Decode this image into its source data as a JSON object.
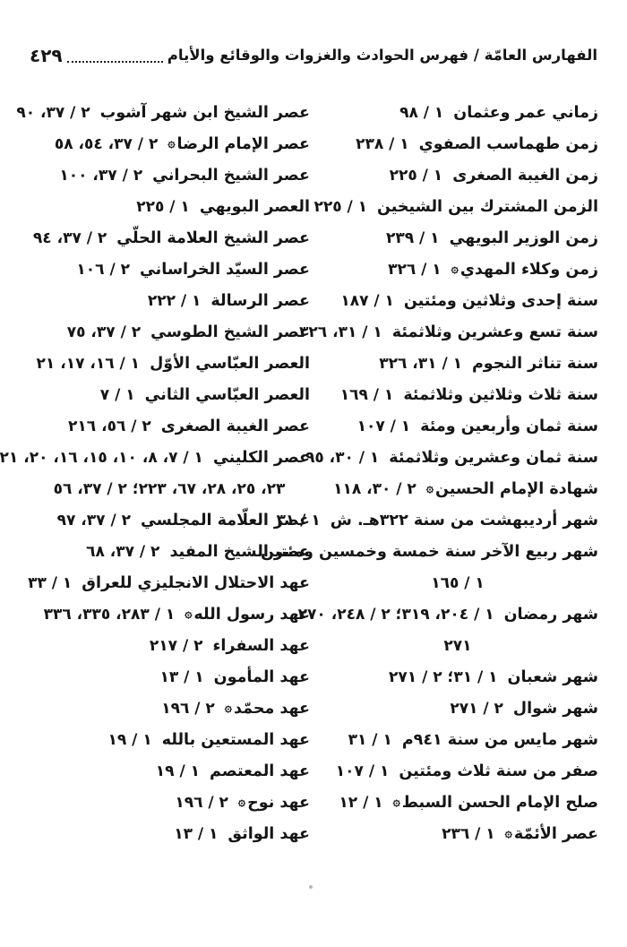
{
  "header": {
    "title": "الفهارس العامّة / فهرس الحوادث والغزوات والوقائع والأيام",
    "page_number": "٤٢٩"
  },
  "columns": {
    "right": [
      {
        "text": "زماني عمر وعثمان",
        "refs": "١ / ٩٨"
      },
      {
        "text": "زمن طهماسب الصفوي",
        "refs": "١ / ٢٣٨"
      },
      {
        "text": "زمن الغيبة الصغرى",
        "refs": "١ / ٢٢٥"
      },
      {
        "text": "الزمن المشترك بين الشيخين",
        "refs": "١ / ٢٢٥"
      },
      {
        "text": "زمن الوزير البويهي",
        "refs": "١ / ٢٣٩"
      },
      {
        "text": "زمن وكلاء المهدي",
        "seal": "۞",
        "refs": "١ / ٣٢٦"
      },
      {
        "text": "سنة إحدى وثلاثين ومئتين",
        "refs": "١ / ١٨٧"
      },
      {
        "text": "سنة تسع وعشرين وثلاثمئة",
        "refs": "١ / ٣١، ٣٢٦"
      },
      {
        "text": "سنة تناثر النجوم",
        "refs": "١ / ٣١، ٣٢٦"
      },
      {
        "text": "سنة ثلاث وثلاثين وثلاثمئة",
        "refs": "١ / ١٦٩"
      },
      {
        "text": "سنة ثمان وأربعين ومئة",
        "refs": "١ / ١٠٧"
      },
      {
        "text": "سنة ثمان وعشرين وثلاثمئة",
        "refs": "١ / ٣٠، ٩٥"
      },
      {
        "text": "شهادة الإمام الحسين",
        "seal": "۞",
        "refs": "٢ / ٣٠، ١١٨"
      },
      {
        "text": "شهر أرديبهشت من سنة ٣٢٢هـ. ش",
        "refs": "١ / ٣١"
      },
      {
        "text": "شهر ربيع الآخر سنة خمسة وخمسين ومئتين",
        "refs": ""
      },
      {
        "text": "",
        "refs": "١ / ١٦٥",
        "align": "center"
      },
      {
        "text": "شهر رمضان",
        "refs": "١ / ٢٠٤، ٣١٩؛ ٢ / ٢٤٨، ٢٧٠،"
      },
      {
        "text": "",
        "refs": "٢٧١",
        "align": "center"
      },
      {
        "text": "شهر شعبان",
        "refs": "١ / ٣١؛ ٢ / ٢٧١"
      },
      {
        "text": "شهر شوال",
        "refs": "٢ / ٢٧١"
      },
      {
        "text": "شهر مايس من سنة ٩٤١م",
        "refs": "١ / ٣١"
      },
      {
        "text": "صفر من سنة ثلاث ومئتين",
        "refs": "١ / ١٠٧"
      },
      {
        "text": "صلح الإمام الحسن السبط",
        "seal": "۞",
        "refs": "١ / ١٢"
      },
      {
        "text": "عصر الأئمّة",
        "seal": "۞",
        "refs": "١ / ٢٣٦"
      }
    ],
    "left": [
      {
        "text": "عصر الشيخ ابن شهر آشوب",
        "refs": "٢ / ٣٧، ٩٠"
      },
      {
        "text": "عصر الإمام الرضا",
        "seal": "۞",
        "refs": "٢ / ٣٧، ٥٤، ٥٨"
      },
      {
        "text": "عصر الشيخ البحراني",
        "refs": "٢ / ٣٧، ١٠٠"
      },
      {
        "text": "العصر البويهي",
        "refs": "١ / ٢٢٥"
      },
      {
        "text": "عصر الشيخ العلامة الحلّي",
        "refs": "٢ / ٣٧، ٩٤"
      },
      {
        "text": "عصر السيّد الخراساني",
        "refs": "٢ / ١٠٦"
      },
      {
        "text": "عصر الرسالة",
        "refs": "١ / ٢٢٢"
      },
      {
        "text": "عصر الشيخ الطوسي",
        "refs": "٢ / ٣٧، ٧٥"
      },
      {
        "text": "العصر العبّاسي الأوّل",
        "refs": "١ / ١٦، ١٧، ٢١"
      },
      {
        "text": "العصر العبّاسي الثاني",
        "refs": "١ / ٧"
      },
      {
        "text": "عصر الغيبة الصغرى",
        "refs": "٢ / ٥٦، ٢١٦"
      },
      {
        "text": "عصر الكليني",
        "refs": "١ / ٧، ٨، ١٠، ١٥، ١٦، ٢٠، ٢١،"
      },
      {
        "text": "",
        "refs": "٢٣، ٢٥، ٢٨، ٦٧، ٢٢٣؛ ٢ / ٣٧، ٥٦",
        "align": "center"
      },
      {
        "text": "عصر العلّامة المجلسي",
        "refs": "٢ / ٣٧، ٩٧"
      },
      {
        "text": "عصر الشيخ المفيد",
        "refs": "٢ / ٣٧، ٦٨"
      },
      {
        "text": "عهد الاحتلال الانجليزي للعراق",
        "refs": "١ / ٣٣"
      },
      {
        "text": "عهد رسول الله",
        "seal": "۞",
        "refs": "١ / ٢٨٣، ٣٣٥، ٣٣٦"
      },
      {
        "text": "عهد السفراء",
        "refs": "٢ / ٢١٧"
      },
      {
        "text": "عهد المأمون",
        "refs": "١ / ١٣"
      },
      {
        "text": "عهد محمّد",
        "seal": "۞",
        "refs": "٢ / ١٩٦"
      },
      {
        "text": "عهد المستعين بالله",
        "refs": "١ / ١٩"
      },
      {
        "text": "عهد المعتصم",
        "refs": "١ / ١٩"
      },
      {
        "text": "عهد نوح",
        "seal": "۞",
        "refs": "٢ / ١٩٦"
      },
      {
        "text": "عهد الواثق",
        "refs": "١ / ١٣"
      }
    ]
  }
}
